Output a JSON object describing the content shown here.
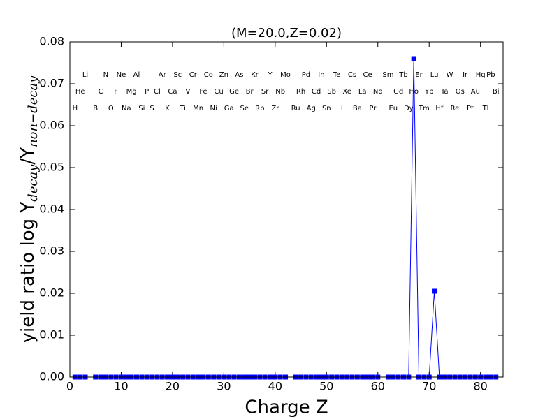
{
  "chart_data": {
    "type": "line",
    "title": "(M=20.0,Z=0.02)",
    "xlabel": "Charge Z",
    "ylabel": {
      "text": "yield ratio log Y",
      "sub1": "decay",
      "mid": "/Y",
      "sub2": "non−decay"
    },
    "x": [
      1,
      2,
      3,
      4,
      5,
      6,
      7,
      8,
      9,
      10,
      11,
      12,
      13,
      14,
      15,
      16,
      17,
      18,
      19,
      20,
      21,
      22,
      23,
      24,
      25,
      26,
      27,
      28,
      29,
      30,
      31,
      32,
      33,
      34,
      35,
      36,
      37,
      38,
      39,
      40,
      41,
      42,
      43,
      44,
      45,
      46,
      47,
      48,
      49,
      50,
      51,
      52,
      53,
      54,
      55,
      56,
      57,
      58,
      59,
      60,
      61,
      62,
      63,
      64,
      65,
      66,
      67,
      68,
      69,
      70,
      71,
      72,
      73,
      74,
      75,
      76,
      77,
      78,
      79,
      80,
      81,
      82,
      83
    ],
    "series": [
      {
        "color": "#0000ff",
        "values": [
          0,
          0,
          0,
          null,
          0,
          0,
          0,
          0,
          0,
          0,
          0,
          0,
          0,
          0,
          0,
          0,
          0,
          0,
          0,
          0,
          0,
          0,
          0,
          0,
          0,
          0,
          0,
          0,
          0,
          0,
          0,
          0,
          0,
          0,
          0,
          0,
          0,
          0,
          0,
          0,
          0,
          0,
          null,
          0,
          0,
          0,
          0,
          0,
          0,
          0,
          0,
          0,
          0,
          0,
          0,
          0,
          0,
          0,
          0,
          0,
          null,
          0,
          0,
          0,
          0,
          0,
          0.076,
          0,
          0,
          0,
          0.0205,
          0,
          0,
          0,
          0,
          0,
          0,
          0,
          0,
          0,
          0,
          0,
          0
        ]
      }
    ],
    "xlim": [
      0,
      84.4
    ],
    "ylim": [
      0,
      0.08
    ],
    "xticks": [
      0,
      10,
      20,
      30,
      40,
      50,
      60,
      70,
      80
    ],
    "yticks": [
      {
        "value": 0,
        "label": "0.00"
      },
      {
        "value": 0.01,
        "label": "0.01"
      },
      {
        "value": 0.02,
        "label": "0.02"
      },
      {
        "value": 0.03,
        "label": "0.03"
      },
      {
        "value": 0.04,
        "label": "0.04"
      },
      {
        "value": 0.05,
        "label": "0.05"
      },
      {
        "value": 0.06,
        "label": "0.06"
      },
      {
        "value": 0.07,
        "label": "0.07"
      },
      {
        "value": 0.08,
        "label": "0.08"
      }
    ],
    "element_labels": [
      {
        "symbols": [
          "Li",
          "N",
          "Ne",
          "Al",
          "Ar",
          "Sc",
          "Cr",
          "Co",
          "Zn",
          "As",
          "Kr",
          "Y",
          "Mo",
          "Pd",
          "In",
          "Te",
          "Cs",
          "Ce",
          "Sm",
          "Tb",
          "Er",
          "Lu",
          "W",
          "Ir",
          "Hg",
          "Pb"
        ],
        "z": [
          3,
          7,
          10,
          13,
          18,
          21,
          24,
          27,
          30,
          33,
          36,
          39,
          42,
          46,
          49,
          52,
          55,
          58,
          62,
          65,
          68,
          71,
          74,
          77,
          80,
          82
        ]
      },
      {
        "symbols": [
          "He",
          "C",
          "F",
          "Mg",
          "P",
          "Cl",
          "Ca",
          "V",
          "Fe",
          "Cu",
          "Ge",
          "Br",
          "Sr",
          "Nb",
          "Rh",
          "Cd",
          "Sb",
          "Xe",
          "La",
          "Nd",
          "Gd",
          "Ho",
          "Yb",
          "Ta",
          "Os",
          "Au",
          "Bi"
        ],
        "z": [
          2,
          6,
          9,
          12,
          15,
          17,
          20,
          23,
          26,
          29,
          32,
          35,
          38,
          41,
          45,
          48,
          51,
          54,
          57,
          60,
          64,
          67,
          70,
          73,
          76,
          79,
          83
        ]
      },
      {
        "symbols": [
          "H",
          "B",
          "O",
          "Na",
          "Si",
          "S",
          "K",
          "Ti",
          "Mn",
          "Ni",
          "Ga",
          "Se",
          "Rb",
          "Zr",
          "Ru",
          "Ag",
          "Sn",
          "I",
          "Ba",
          "Pr",
          "Eu",
          "Dy",
          "Tm",
          "Hf",
          "Re",
          "Pt",
          "Tl"
        ],
        "z": [
          1,
          5,
          8,
          11,
          14,
          16,
          19,
          22,
          25,
          28,
          31,
          34,
          37,
          40,
          44,
          47,
          50,
          53,
          56,
          59,
          63,
          66,
          69,
          72,
          75,
          78,
          81
        ]
      }
    ]
  }
}
